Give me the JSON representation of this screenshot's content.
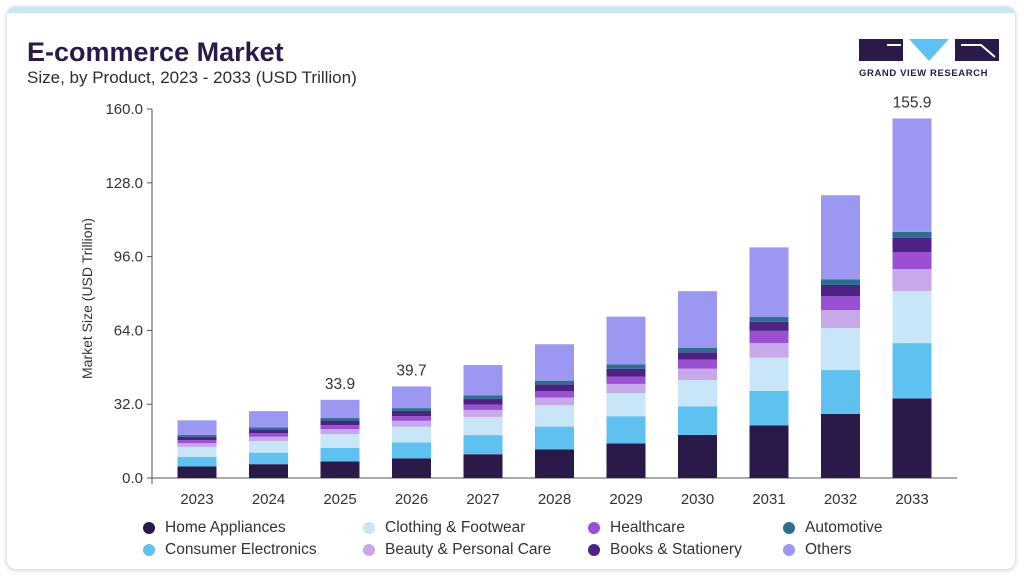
{
  "header": {
    "title": "E-commerce Market",
    "subtitle": "Size, by Product, 2023 - 2033 (USD Trillion)"
  },
  "brand": {
    "name": "GRAND VIEW RESEARCH",
    "logo_icon": "grand-view-research-logo",
    "colors": {
      "dark": "#2a1a4a",
      "accent": "#5fc1ef"
    }
  },
  "chart_data": {
    "type": "bar",
    "stacked": true,
    "categories": [
      "2023",
      "2024",
      "2025",
      "2026",
      "2027",
      "2028",
      "2029",
      "2030",
      "2031",
      "2032",
      "2033"
    ],
    "ylabel": "Market Size (USD Trillion)",
    "xlabel": "",
    "ylim": [
      0,
      160
    ],
    "yticks": [
      "0.0",
      "32.0",
      "64.0",
      "96.0",
      "128.0",
      "160.0"
    ],
    "grid": false,
    "legend_position": "bottom",
    "annotations": [
      {
        "category": "2025",
        "label": "33.9"
      },
      {
        "category": "2026",
        "label": "39.7"
      },
      {
        "category": "2033",
        "label": "155.9"
      }
    ],
    "series": [
      {
        "name": "Home Appliances",
        "color": "#2a1a4a",
        "values": [
          5.0,
          6.0,
          7.2,
          8.5,
          10.3,
          12.4,
          15.0,
          18.7,
          22.8,
          27.8,
          34.5
        ]
      },
      {
        "name": "Consumer Electronics",
        "color": "#5fc1ef",
        "values": [
          4.2,
          5.0,
          5.9,
          6.9,
          8.3,
          9.9,
          11.8,
          12.3,
          15.0,
          19.0,
          24.0
        ]
      },
      {
        "name": "Clothing & Footwear",
        "color": "#c8e6f8",
        "values": [
          4.3,
          5.0,
          5.9,
          6.8,
          7.9,
          9.2,
          10.0,
          11.5,
          14.4,
          18.2,
          22.5
        ]
      },
      {
        "name": "Beauty & Personal Care",
        "color": "#c7a8e8",
        "values": [
          1.6,
          1.9,
          2.2,
          2.6,
          3.0,
          3.4,
          4.0,
          4.9,
          6.3,
          7.8,
          9.6
        ]
      },
      {
        "name": "Healthcare",
        "color": "#9b50d3",
        "values": [
          1.3,
          1.5,
          1.7,
          2.0,
          2.3,
          2.7,
          3.2,
          4.0,
          5.3,
          6.0,
          7.4
        ]
      },
      {
        "name": "Books & Stationery",
        "color": "#4c2384",
        "values": [
          1.5,
          1.7,
          2.0,
          2.3,
          2.6,
          3.0,
          3.4,
          3.1,
          3.9,
          4.9,
          6.1
        ]
      },
      {
        "name": "Automotive",
        "color": "#2c6e8e",
        "values": [
          0.8,
          0.9,
          1.1,
          1.2,
          1.4,
          1.6,
          1.8,
          2.0,
          2.1,
          2.5,
          2.6
        ]
      },
      {
        "name": "Others",
        "color": "#9c98f2",
        "values": [
          6.3,
          7.0,
          7.9,
          9.4,
          13.2,
          15.8,
          20.8,
          24.5,
          30.2,
          36.4,
          49.2
        ]
      }
    ]
  }
}
